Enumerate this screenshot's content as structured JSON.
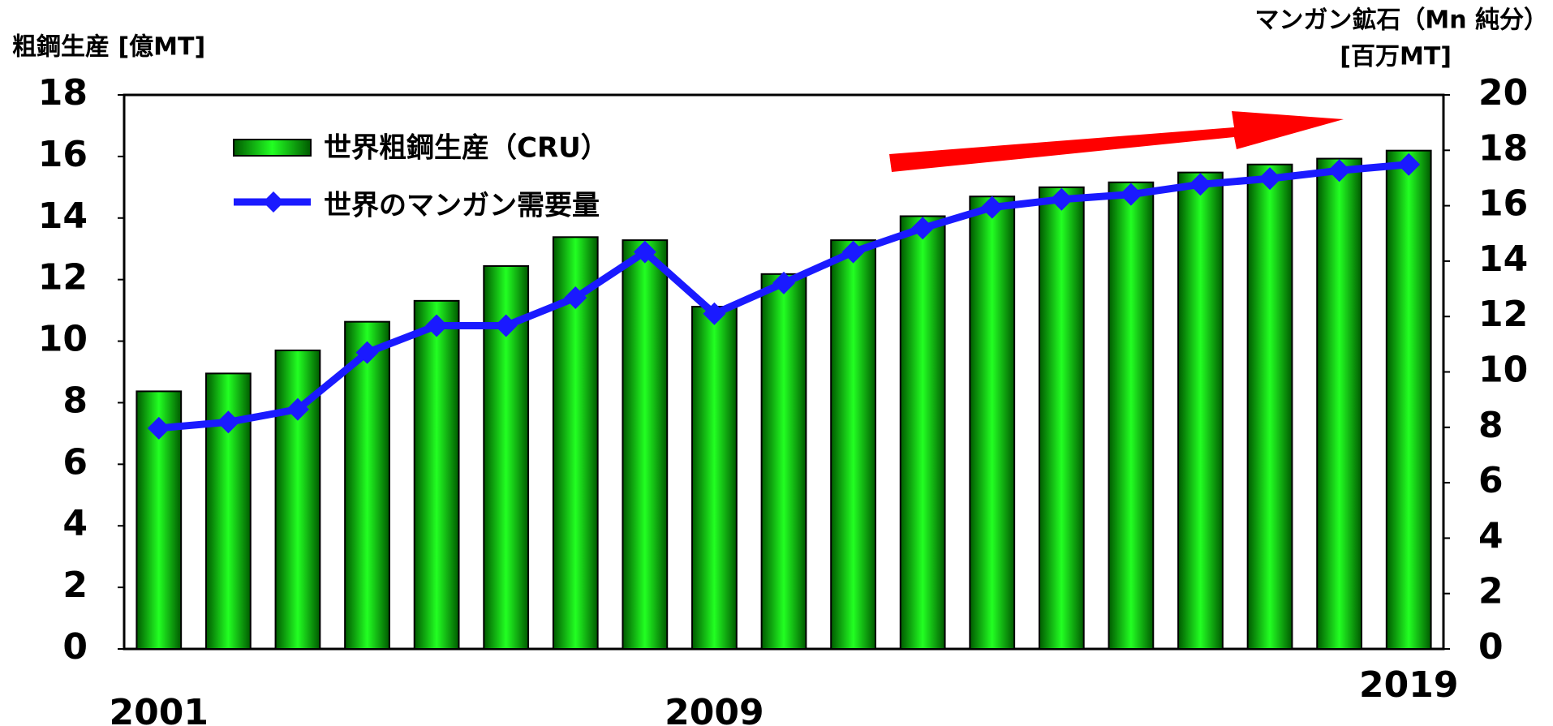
{
  "chart_data": {
    "type": "bar_line",
    "y_label": "粗鋼生産 [億MT]",
    "y2_label": [
      "マンガン鉱石（Mn 純分）",
      "[百万MT]"
    ],
    "categories": [
      "2001",
      null,
      null,
      null,
      null,
      null,
      null,
      null,
      "2009",
      null,
      null,
      null,
      null,
      null,
      null,
      null,
      null,
      null,
      "2019"
    ],
    "series": [
      {
        "name": "世界粗鋼生産（CRU）",
        "type": "bar",
        "color": "#00cc00",
        "values": [
          8.37,
          8.95,
          9.7,
          10.63,
          11.31,
          12.44,
          13.38,
          13.28,
          11.12,
          12.18,
          13.28,
          14.06,
          14.7,
          15.0,
          15.16,
          15.48,
          15.74,
          15.93,
          16.19
        ]
      },
      {
        "name": "世界のマンガン需要量",
        "type": "line",
        "axis": "y2",
        "color": "#1a1aff",
        "values": [
          7.97,
          8.19,
          8.65,
          10.7,
          11.67,
          11.67,
          12.68,
          14.33,
          12.1,
          13.21,
          14.33,
          15.19,
          15.94,
          16.23,
          16.41,
          16.77,
          16.98,
          17.27,
          17.49
        ]
      }
    ],
    "ylim": [
      0,
      18
    ],
    "yticks": [
      0,
      2,
      4,
      6,
      8,
      10,
      12,
      14,
      16,
      18
    ],
    "y2lim": [
      0,
      20
    ],
    "y2ticks": [
      0,
      2,
      4,
      6,
      8,
      10,
      12,
      14,
      16,
      18,
      20
    ],
    "grid": false
  }
}
